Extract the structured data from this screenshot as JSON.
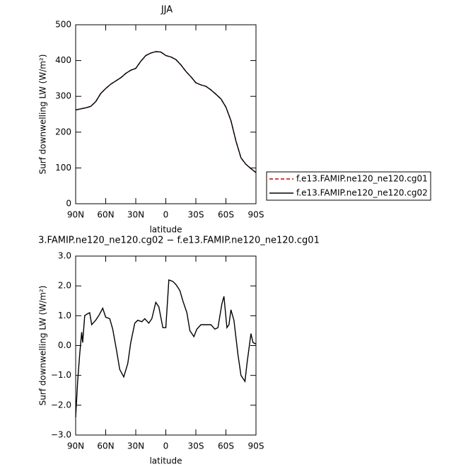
{
  "chart_data": [
    {
      "type": "line",
      "title": "JJA",
      "xlabel": "latitude",
      "ylabel": "Surf downwelling LW (W/m²)",
      "x": [
        90,
        85,
        80,
        75,
        70,
        65,
        60,
        55,
        50,
        45,
        40,
        35,
        30,
        25,
        20,
        15,
        10,
        5,
        0,
        -5,
        -10,
        -15,
        -20,
        -25,
        -30,
        -35,
        -40,
        -45,
        -50,
        -55,
        -60,
        -65,
        -70,
        -75,
        -80,
        -85,
        -90
      ],
      "series": [
        {
          "name": "f.e13.FAMIP.ne120_ne120.cg01",
          "color": "#cc0000",
          "dash": true,
          "values": [
            262,
            265,
            268,
            272,
            285,
            308,
            322,
            334,
            343,
            352,
            364,
            373,
            378,
            398,
            414,
            421,
            425,
            424,
            414,
            410,
            403,
            388,
            370,
            355,
            338,
            332,
            328,
            318,
            306,
            293,
            270,
            232,
            175,
            128,
            110,
            98,
            87
          ]
        },
        {
          "name": "f.e13.FAMIP.ne120_ne120.cg02",
          "color": "#000000",
          "dash": false,
          "values": [
            262,
            265,
            268,
            272,
            285,
            308,
            322,
            334,
            343,
            352,
            364,
            373,
            378,
            398,
            414,
            421,
            425,
            424,
            414,
            410,
            403,
            388,
            370,
            355,
            338,
            332,
            328,
            318,
            306,
            293,
            270,
            232,
            175,
            128,
            110,
            98,
            87
          ]
        }
      ],
      "xlim": [
        90,
        -90
      ],
      "xticks": [
        {
          "value": 90,
          "label": "90N"
        },
        {
          "value": 60,
          "label": "60N"
        },
        {
          "value": 30,
          "label": "30N"
        },
        0,
        {
          "value": -30,
          "label": "30S"
        },
        {
          "value": -60,
          "label": "60S"
        },
        {
          "value": -90,
          "label": "90S"
        }
      ],
      "ylim": [
        0,
        500
      ],
      "yticks": [
        0,
        100,
        200,
        300,
        400,
        500
      ],
      "legend": "right"
    },
    {
      "type": "line",
      "title": "3.FAMIP.ne120_ne120.cg02 − f.e13.FAMIP.ne120_ne120.cg01",
      "xlabel": "latitude",
      "ylabel": "Surf downwelling LW (W/m²)",
      "x": [
        90,
        88,
        86,
        84,
        83,
        81,
        79,
        76,
        74,
        70,
        67,
        63,
        60,
        56,
        53,
        49,
        46,
        42,
        38,
        35,
        31,
        28,
        24,
        21,
        17,
        14,
        10,
        7,
        3,
        0,
        -3,
        -7,
        -10,
        -14,
        -17,
        -21,
        -24,
        -28,
        -31,
        -35,
        -38,
        -42,
        -45,
        -49,
        -52,
        -56,
        -58,
        -61,
        -63,
        -65,
        -68,
        -72,
        -75,
        -79,
        -81,
        -85,
        -87,
        -90
      ],
      "values": [
        -2.4,
        -1.2,
        -0.3,
        0.45,
        0.1,
        1.0,
        1.05,
        1.1,
        0.7,
        0.85,
        1.0,
        1.25,
        0.95,
        0.9,
        0.55,
        -0.2,
        -0.8,
        -1.05,
        -0.6,
        0.1,
        0.75,
        0.85,
        0.8,
        0.9,
        0.75,
        0.9,
        1.45,
        1.3,
        0.6,
        0.6,
        2.2,
        2.15,
        2.05,
        1.85,
        1.5,
        1.1,
        0.5,
        0.3,
        0.55,
        0.7,
        0.7,
        0.7,
        0.7,
        0.55,
        0.6,
        1.4,
        1.65,
        0.6,
        0.7,
        1.2,
        0.85,
        -0.3,
        -1.0,
        -1.2,
        -0.6,
        0.4,
        0.1,
        0.05
      ],
      "color": "#000000",
      "xlim": [
        90,
        -90
      ],
      "xticks": [
        {
          "value": 90,
          "label": "90N"
        },
        {
          "value": 60,
          "label": "60N"
        },
        {
          "value": 30,
          "label": "30N"
        },
        0,
        {
          "value": -30,
          "label": "30S"
        },
        {
          "value": -60,
          "label": "60S"
        },
        {
          "value": -90,
          "label": "90S"
        }
      ],
      "ylim": [
        -3,
        3
      ],
      "yticks": [
        {
          "value": -3,
          "label": "−3.0"
        },
        {
          "value": -2,
          "label": "−2.0"
        },
        {
          "value": -1,
          "label": "−1.0"
        },
        {
          "value": 0,
          "label": "0.0"
        },
        {
          "value": 1,
          "label": "1.0"
        },
        {
          "value": 2,
          "label": "2.0"
        },
        {
          "value": 3,
          "label": "3.0"
        }
      ]
    }
  ]
}
